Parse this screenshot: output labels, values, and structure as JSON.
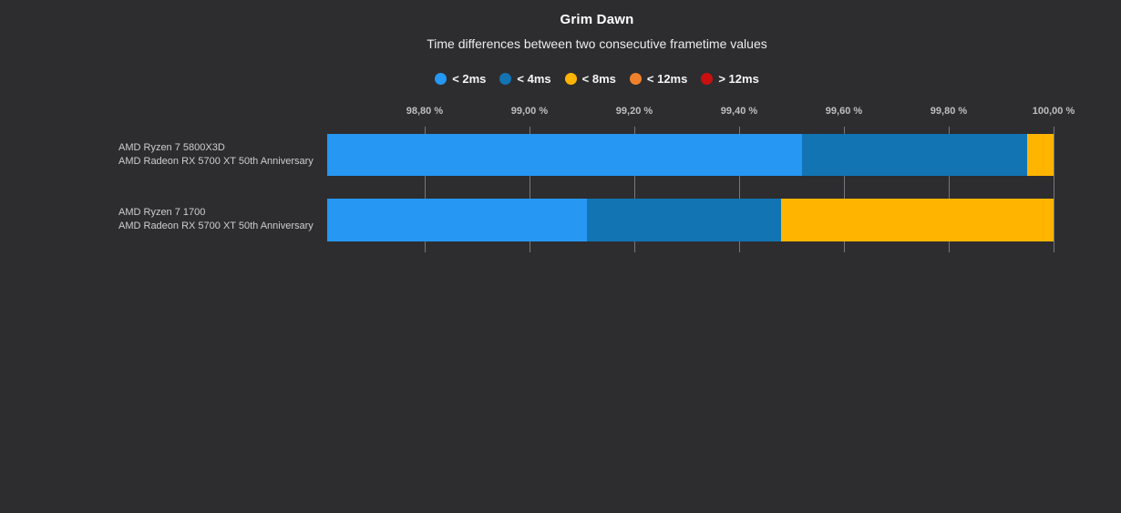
{
  "colors": {
    "background": "#2D2D30",
    "gridline": "#77777B",
    "title_text": "#FFFFFF",
    "subtitle_text": "#ECECEC",
    "axis_text": "#BEBEBE",
    "category_text": "#CDCDCD"
  },
  "chart_data": {
    "type": "bar",
    "orientation": "horizontal",
    "stacked": true,
    "title": "Grim Dawn",
    "subtitle": "Time differences between two consecutive frametime values",
    "unit": "%",
    "grid": true,
    "legend_position": "top",
    "xlim": [
      98.614,
      100.0
    ],
    "x_ticks": [
      {
        "value": 98.8,
        "label": "98,80 %"
      },
      {
        "value": 99.0,
        "label": "99,00 %"
      },
      {
        "value": 99.2,
        "label": "99,20 %"
      },
      {
        "value": 99.4,
        "label": "99,40 %"
      },
      {
        "value": 99.6,
        "label": "99,60 %"
      },
      {
        "value": 99.8,
        "label": "99,80 %"
      },
      {
        "value": 100.0,
        "label": "100,00 %"
      }
    ],
    "categories": [
      {
        "lines": [
          "AMD Ryzen 7 5800X3D",
          "AMD Radeon RX 5700 XT 50th Anniversary"
        ]
      },
      {
        "lines": [
          "AMD Ryzen 7 1700",
          "AMD Radeon RX 5700 XT 50th Anniversary"
        ]
      }
    ],
    "series": [
      {
        "name": "< 2ms",
        "color": "#2697F3",
        "values": [
          99.52,
          99.11
        ]
      },
      {
        "name": "< 4ms",
        "color": "#1274B2",
        "values": [
          0.43,
          0.37
        ]
      },
      {
        "name": "< 8ms",
        "color": "#FFB400",
        "values": [
          0.05,
          0.52
        ]
      },
      {
        "name": "< 12ms",
        "color": "#F0812B",
        "values": [
          0.0,
          0.0
        ]
      },
      {
        "name": "> 12ms",
        "color": "#C81010",
        "values": [
          0.0,
          0.0
        ]
      }
    ]
  }
}
